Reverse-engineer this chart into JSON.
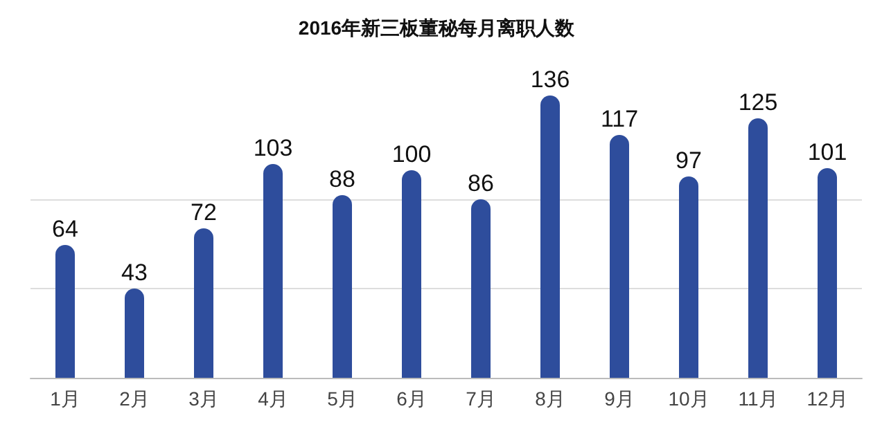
{
  "chart_data": {
    "type": "bar",
    "title": "2016年新三板董秘每月离职人数",
    "categories": [
      "1月",
      "2月",
      "3月",
      "4月",
      "5月",
      "6月",
      "7月",
      "8月",
      "9月",
      "10月",
      "11月",
      "12月"
    ],
    "values": [
      64,
      43,
      72,
      103,
      88,
      100,
      86,
      136,
      117,
      97,
      125,
      101
    ],
    "color": "#2e4d9c",
    "ref_lines": [
      {
        "axis": "y",
        "value": 43,
        "color": "#dddddd"
      },
      {
        "axis": "y",
        "value": 86,
        "color": "#dddddd"
      }
    ],
    "tick_labels": "x",
    "data_labels": true
  }
}
